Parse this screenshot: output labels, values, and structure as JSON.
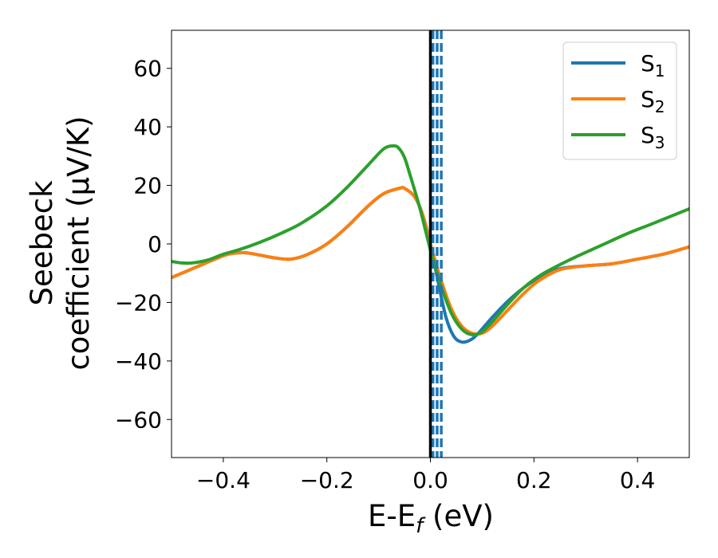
{
  "chart_data": {
    "type": "line",
    "xlabel": "E-E",
    "xlabel_sub": "f",
    "xlabel_unit": " (eV)",
    "ylabel_line1": "Seebeck",
    "ylabel_line2": "coefficient  (μV/K)",
    "xlim": [
      -0.5,
      0.5
    ],
    "ylim": [
      -73,
      73
    ],
    "xticks": [
      -0.4,
      -0.2,
      0.0,
      0.2,
      0.4
    ],
    "xtick_labels": [
      "−0.4",
      "−0.2",
      "0.0",
      "0.2",
      "0.4"
    ],
    "yticks": [
      -60,
      -40,
      -20,
      0,
      20,
      40,
      60
    ],
    "ytick_labels": [
      "−60",
      "−40",
      "−20",
      "0",
      "20",
      "40",
      "60"
    ],
    "grid": false,
    "legend_position": "top-right",
    "vline_solid": {
      "x": 0.0,
      "color": "#000000"
    },
    "vlines_dashed": {
      "x": [
        0.005,
        0.013,
        0.021
      ],
      "color": "#1f77b4"
    },
    "series": [
      {
        "name": "S",
        "sub": "1",
        "color": "#1f77b4",
        "x": [
          -0.5,
          -0.46,
          -0.42,
          -0.39,
          -0.36,
          -0.33,
          -0.3,
          -0.27,
          -0.24,
          -0.2,
          -0.16,
          -0.12,
          -0.09,
          -0.06,
          -0.05,
          -0.03,
          -0.015,
          0.0,
          0.015,
          0.03,
          0.045,
          0.06,
          0.075,
          0.09,
          0.12,
          0.15,
          0.18,
          0.21,
          0.25,
          0.3,
          0.35,
          0.4,
          0.45,
          0.5
        ],
        "y": [
          -11.5,
          -8.5,
          -5.5,
          -3.5,
          -3.0,
          -3.8,
          -4.8,
          -5.2,
          -3.8,
          0.0,
          6.0,
          13.0,
          17.2,
          19.0,
          19.0,
          16.0,
          10.0,
          0.0,
          -13.0,
          -25.0,
          -31.5,
          -33.5,
          -33.0,
          -31.0,
          -25.0,
          -19.5,
          -15.0,
          -11.5,
          -8.5,
          -7.5,
          -6.8,
          -5.2,
          -3.5,
          -1.0
        ]
      },
      {
        "name": "S",
        "sub": "2",
        "color": "#ff7f0e",
        "x": [
          -0.5,
          -0.46,
          -0.42,
          -0.39,
          -0.36,
          -0.33,
          -0.3,
          -0.27,
          -0.24,
          -0.2,
          -0.16,
          -0.12,
          -0.09,
          -0.06,
          -0.05,
          -0.03,
          -0.015,
          0.0,
          0.02,
          0.04,
          0.06,
          0.08,
          0.1,
          0.12,
          0.15,
          0.18,
          0.21,
          0.25,
          0.3,
          0.35,
          0.4,
          0.45,
          0.5
        ],
        "y": [
          -11.5,
          -8.5,
          -5.5,
          -3.5,
          -3.0,
          -3.8,
          -4.8,
          -5.2,
          -3.8,
          0.0,
          6.0,
          13.0,
          17.2,
          19.0,
          19.0,
          16.0,
          10.0,
          0.0,
          -12.0,
          -22.0,
          -28.0,
          -30.5,
          -30.5,
          -28.0,
          -22.5,
          -17.0,
          -12.5,
          -8.8,
          -7.5,
          -6.8,
          -5.2,
          -3.5,
          -1.0
        ]
      },
      {
        "name": "S",
        "sub": "3",
        "color": "#2ca02c",
        "x": [
          -0.5,
          -0.48,
          -0.46,
          -0.43,
          -0.4,
          -0.37,
          -0.33,
          -0.29,
          -0.25,
          -0.2,
          -0.16,
          -0.12,
          -0.09,
          -0.07,
          -0.06,
          -0.05,
          -0.04,
          -0.02,
          0.0,
          0.02,
          0.04,
          0.06,
          0.08,
          0.1,
          0.12,
          0.15,
          0.18,
          0.21,
          0.24,
          0.28,
          0.33,
          0.38,
          0.43,
          0.5
        ],
        "y": [
          -6.0,
          -6.5,
          -6.5,
          -5.5,
          -3.5,
          -2.0,
          0.5,
          3.5,
          7.0,
          13.0,
          19.5,
          27.0,
          32.5,
          33.5,
          32.5,
          29.5,
          24.0,
          12.0,
          -2.0,
          -14.0,
          -23.5,
          -29.0,
          -31.0,
          -30.0,
          -26.5,
          -20.5,
          -15.0,
          -11.0,
          -8.0,
          -4.5,
          -0.5,
          3.5,
          7.0,
          12.0
        ]
      }
    ]
  }
}
